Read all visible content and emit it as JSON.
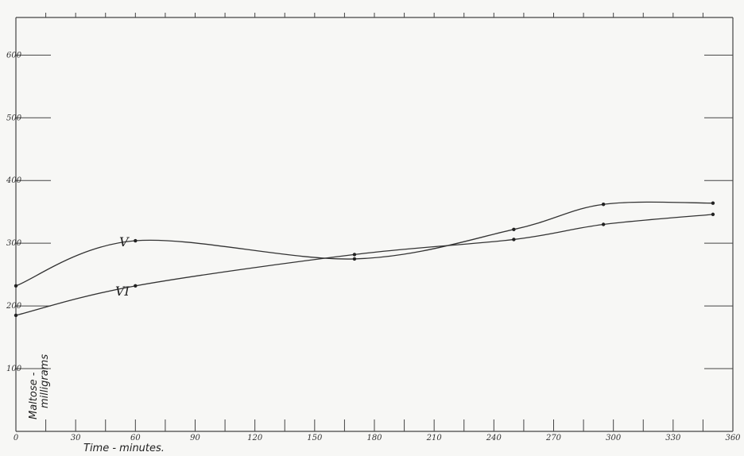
{
  "chart_data": {
    "type": "line",
    "xlabel": "Time - minutes.",
    "ylabel_line1": "Maltose -",
    "ylabel_line2": "milligrams",
    "x_ticks": [
      0,
      30,
      60,
      90,
      120,
      150,
      180,
      210,
      240,
      270,
      300,
      330,
      360
    ],
    "y_ticks": [
      100,
      200,
      300,
      400,
      500,
      600
    ],
    "xlim": [
      0,
      360
    ],
    "ylim": [
      0,
      660
    ],
    "grid": false,
    "series": [
      {
        "name": "V",
        "x": [
          0,
          60,
          170,
          250,
          295,
          350
        ],
        "y": [
          232,
          304,
          275,
          322,
          362,
          364
        ]
      },
      {
        "name": "VI",
        "x": [
          0,
          60,
          170,
          250,
          295,
          350
        ],
        "y": [
          185,
          232,
          282,
          306,
          330,
          346
        ]
      }
    ]
  }
}
